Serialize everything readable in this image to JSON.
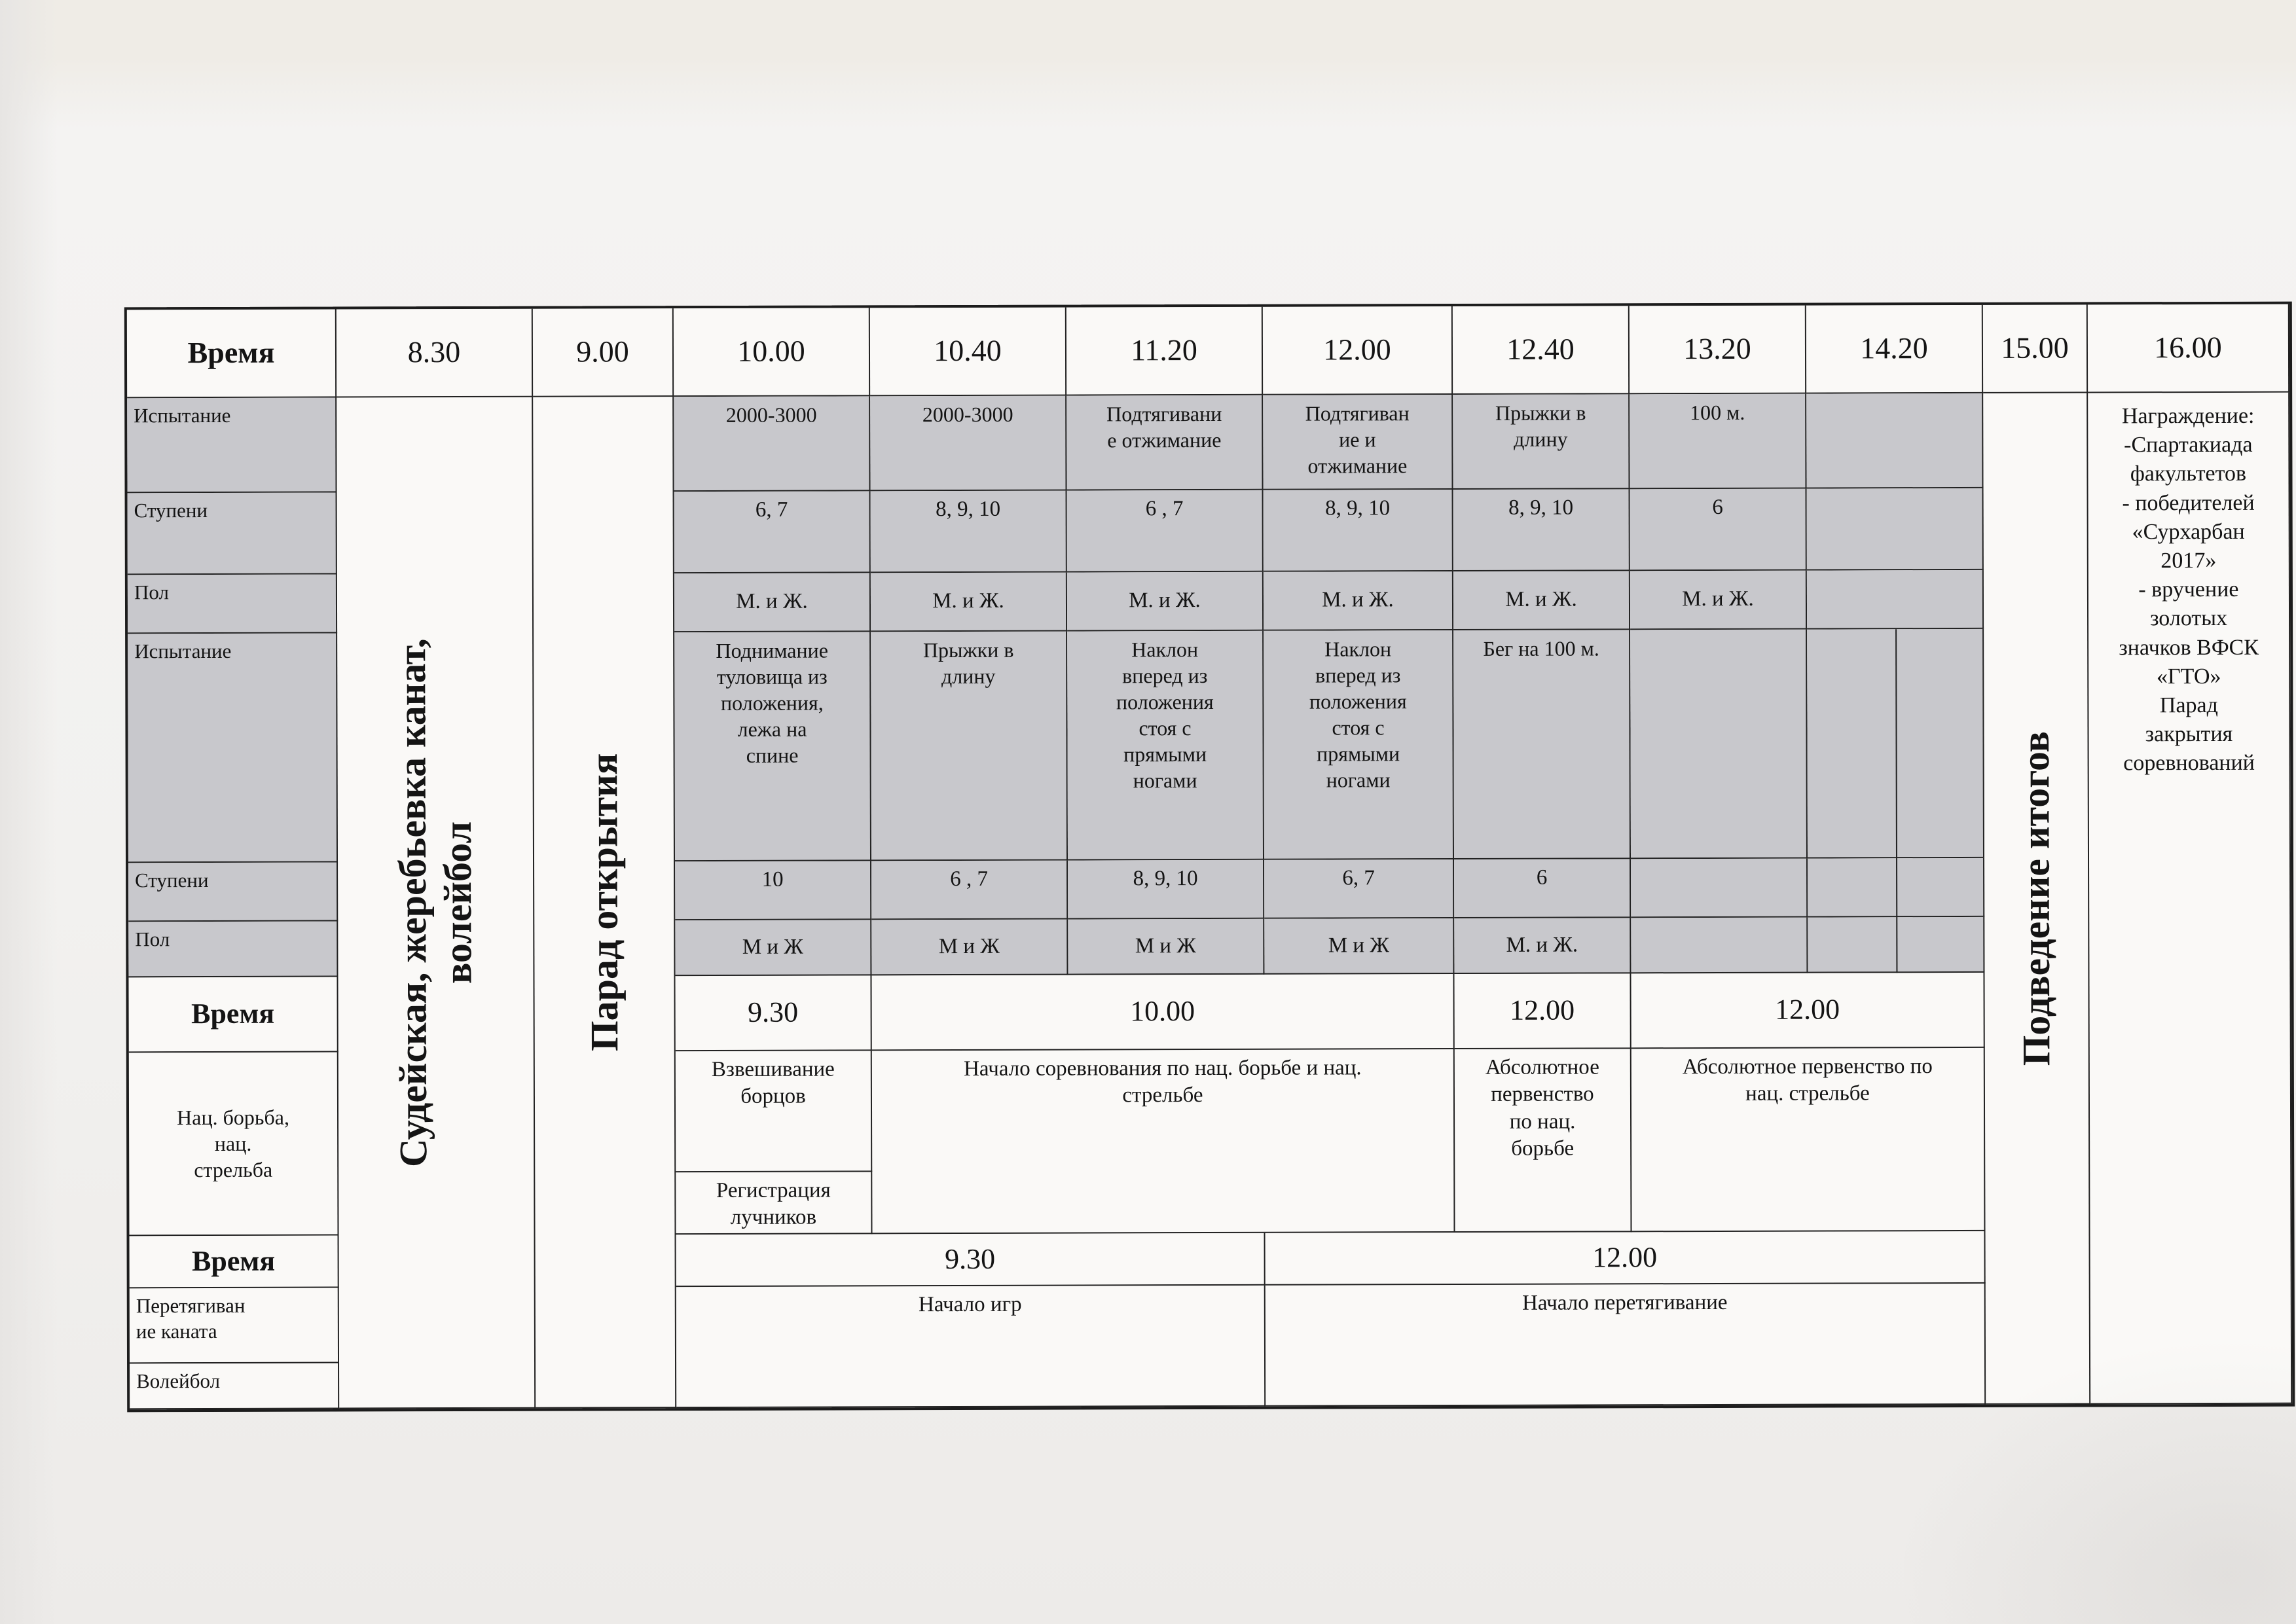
{
  "table": {
    "header": {
      "label": "Время",
      "cols": [
        "8.30",
        "9.00",
        "10.00",
        "10.40",
        "11.20",
        "12.00",
        "12.40",
        "13.20",
        "14.20",
        "15.00",
        "16.00"
      ]
    },
    "row_labels": {
      "test": "Испытание",
      "stage": "Ступени",
      "gender": "Пол",
      "time": "Время",
      "nat": "Нац. борьба,\nнац.\nстрельба",
      "tug": "Перетягиван\nие каната",
      "volleyball": "Волейбол"
    },
    "gto1": {
      "tests": [
        "2000-3000",
        "2000-3000",
        "Подтягивани\nе  отжимание",
        "Подтягиван\nие и\nотжимание",
        "Прыжки в\nдлину",
        "100 м.",
        ""
      ],
      "stages": [
        "6, 7",
        "8, 9, 10",
        "6 , 7",
        "8, 9, 10",
        "8, 9, 10",
        "6",
        ""
      ],
      "genders": [
        "М. и Ж.",
        "М. и Ж.",
        "М. и Ж.",
        "М. и Ж.",
        "М. и Ж.",
        "М. и Ж.",
        ""
      ]
    },
    "gto2": {
      "tests": [
        "Поднимание\nтуловища из\nположения,\nлежа на\nспине",
        "Прыжки в\nдлину",
        "Наклон\nвперед из\nположения\nстоя с\nпрямыми\nногами",
        "Наклон\nвперед из\nположения\nстоя с\nпрямыми\nногами",
        "Бег на 100 м.",
        "",
        ""
      ],
      "stages": [
        "10",
        "6 , 7",
        "8, 9, 10",
        "6, 7",
        "6",
        "",
        ""
      ],
      "genders": [
        "М и Ж",
        "М и Ж",
        "М и Ж",
        "М и Ж",
        "М. и Ж.",
        "",
        ""
      ]
    },
    "nat_section": {
      "times": [
        "9.30",
        "10.00",
        "12.00",
        "12.00"
      ],
      "weighing": "Взвешивание\nборцов",
      "registration": "Регистрация\nлучников",
      "start": "Начало соревнования по нац. борьбе и нац.\nстрельбе",
      "abs_wrestling": "Абсолютное\nпервенство\nпо нац.\nборьбе",
      "abs_shooting": "Абсолютное первенство по\nнац. стрельбе"
    },
    "games_section": {
      "times": [
        "9.30",
        "12.00"
      ],
      "start_games": "Начало игр",
      "start_tug": "Начало перетягивание"
    },
    "verticals": {
      "judging": "Судейская, жеребьевка канат,\nволейбол",
      "parade": "Парад открытия",
      "results": "Подведение итогов"
    },
    "awards": "Награждение:\n-Спартакиада\nфакультетов\n- победителей\n«Сурхарбан\n2017»\n- вручение\nзолотых\nзначков ВФСК\n«ГТО»\nПарад\nзакрытия\nсоревнований"
  }
}
